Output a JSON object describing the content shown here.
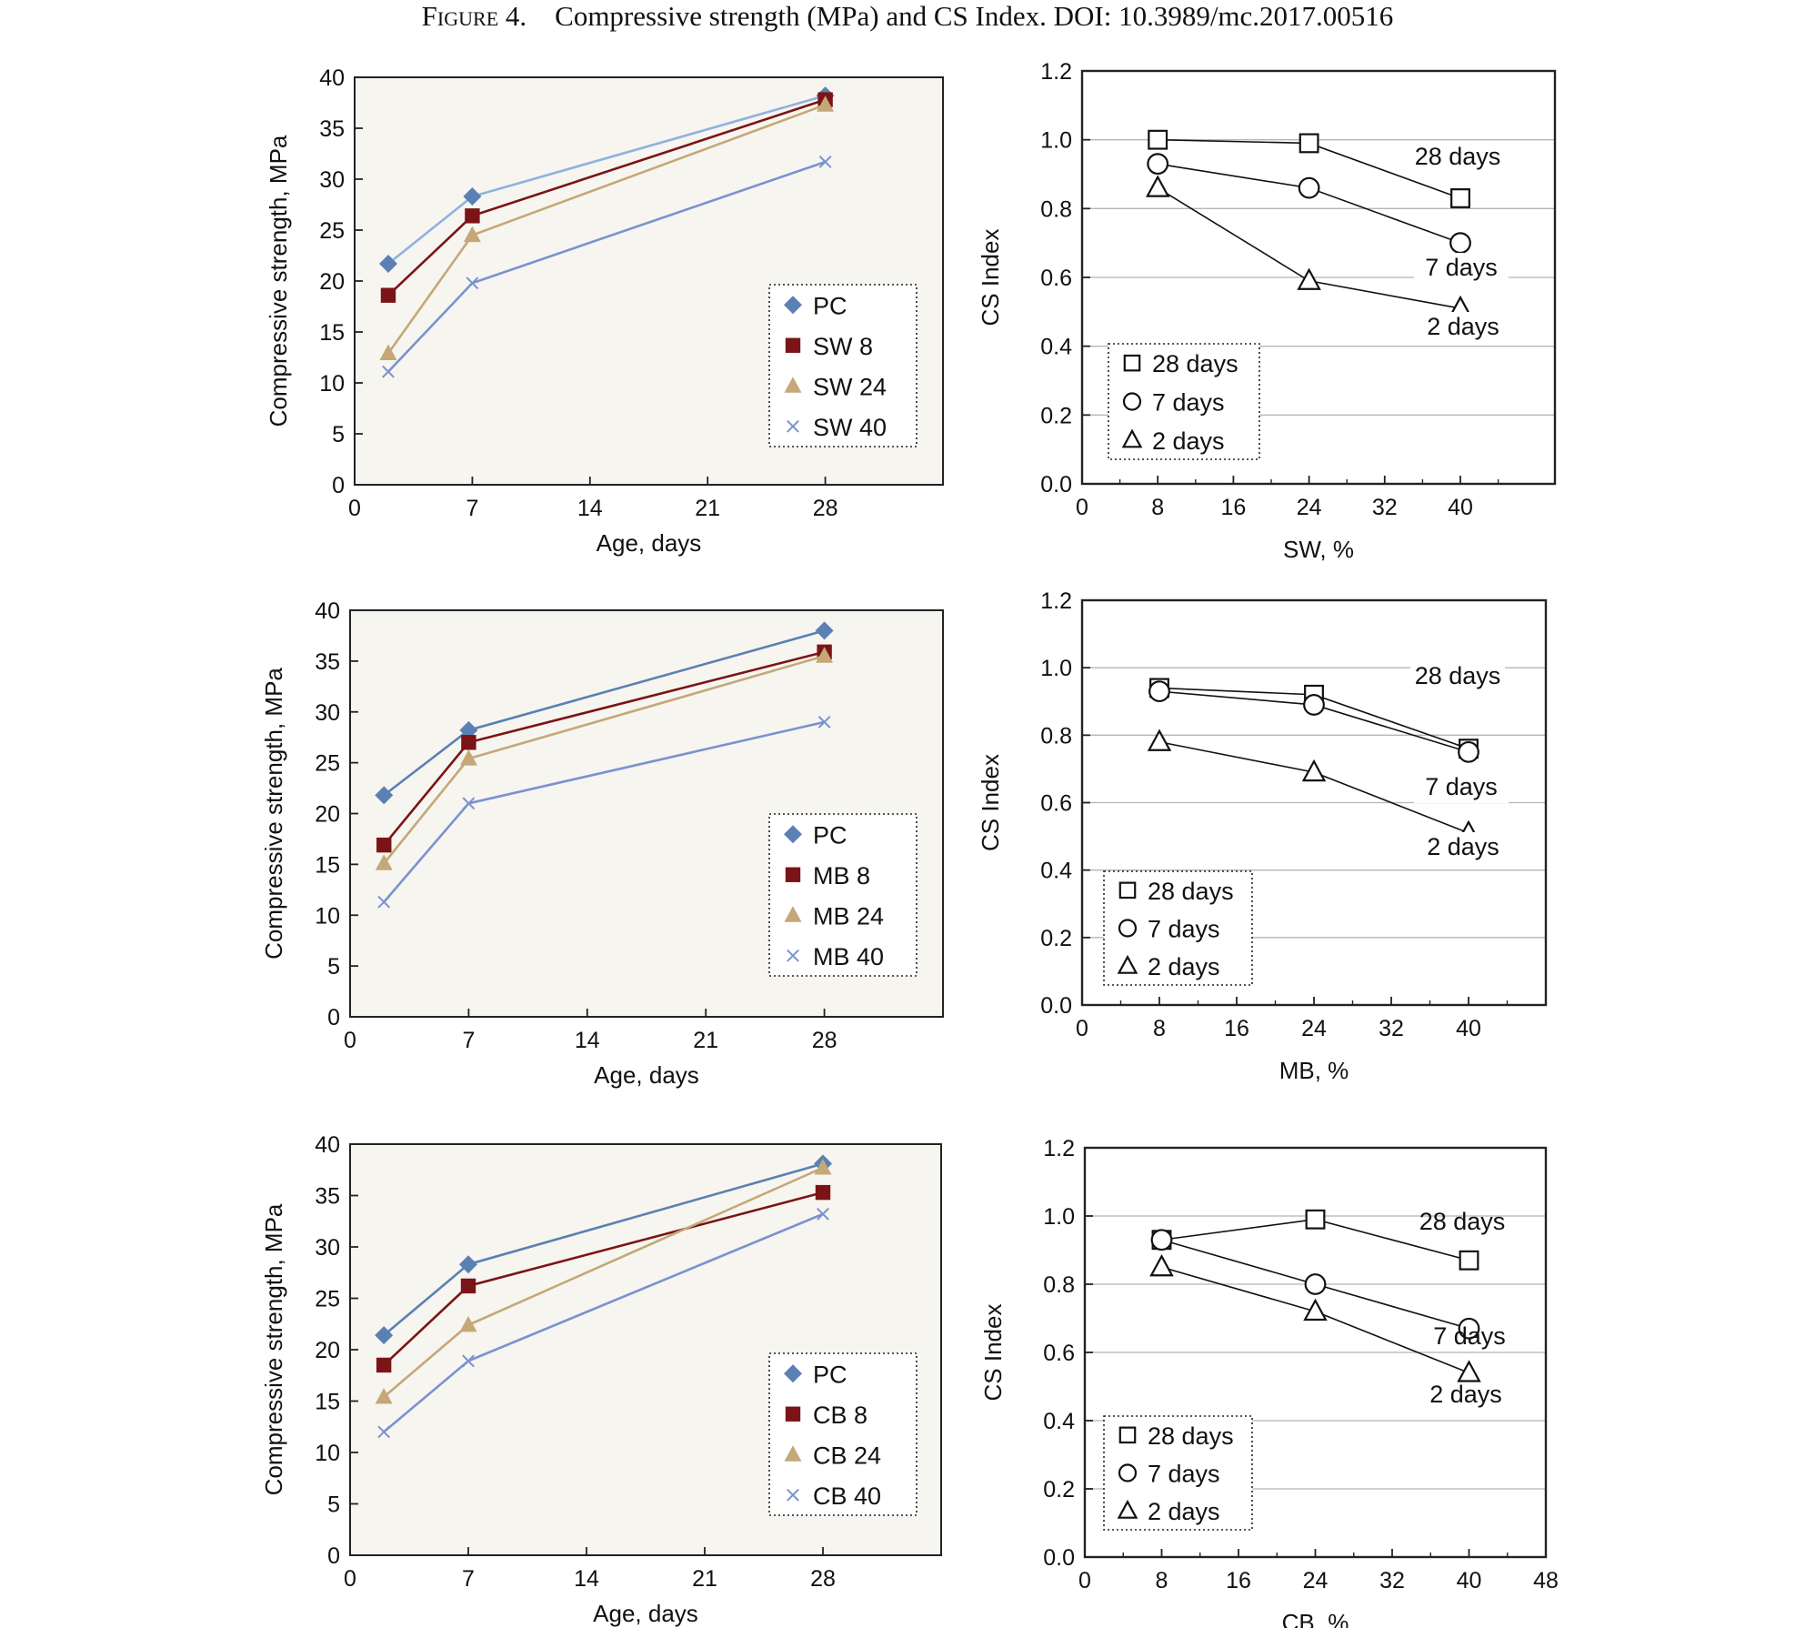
{
  "caption": {
    "label": "Figure 4.",
    "text": "Compressive strength (MPa) and CS Index. DOI: 10.3989/mc.2017.00516"
  },
  "colors": {
    "pc": "#5b80b4",
    "series_8": "#7b1416",
    "series_24": "#c4a877",
    "series_40": "#7a92cf",
    "pc_line_top": "#8fb2de",
    "plot_bg": "#f7f5f0",
    "grid": "#b5b5b5"
  },
  "chart_data": [
    {
      "type": "line",
      "panel": "strength-sw",
      "xlabel": "Age, days",
      "ylabel": "Compressive strength, MPa",
      "xlim": [
        0,
        35
      ],
      "ylim": [
        0,
        40
      ],
      "xticks": [
        0,
        7,
        14,
        21,
        28
      ],
      "yticks": [
        0,
        5,
        10,
        15,
        20,
        25,
        30,
        35,
        40
      ],
      "legend_placement": "center-right",
      "series": [
        {
          "name": "PC",
          "marker": "diamond",
          "x": [
            2,
            7,
            28
          ],
          "values": [
            21.7,
            28.3,
            38.2
          ]
        },
        {
          "name": "SW 8",
          "marker": "square",
          "x": [
            2,
            7,
            28
          ],
          "values": [
            18.6,
            26.4,
            37.8
          ]
        },
        {
          "name": "SW 24",
          "marker": "triangle",
          "x": [
            2,
            7,
            28
          ],
          "values": [
            12.9,
            24.5,
            37.3
          ]
        },
        {
          "name": "SW 40",
          "marker": "x",
          "x": [
            2,
            7,
            28
          ],
          "values": [
            11.1,
            19.8,
            31.7
          ]
        }
      ]
    },
    {
      "type": "line",
      "panel": "csindex-sw",
      "xlabel": "SW, %",
      "ylabel": "CS Index",
      "xlim": [
        0,
        50
      ],
      "ylim": [
        0,
        1.2
      ],
      "xticks": [
        0,
        8,
        16,
        24,
        32,
        40
      ],
      "yticks": [
        0.0,
        0.2,
        0.4,
        0.6,
        0.8,
        1.0,
        1.2
      ],
      "legend_placement": "bottom-left",
      "series": [
        {
          "name": "28 days",
          "marker": "square",
          "x": [
            8,
            24,
            40
          ],
          "values": [
            1.0,
            0.99,
            0.83
          ]
        },
        {
          "name": "7 days",
          "marker": "circle",
          "x": [
            8,
            24,
            40
          ],
          "values": [
            0.93,
            0.86,
            0.7
          ]
        },
        {
          "name": "2 days",
          "marker": "triangle",
          "x": [
            8,
            24,
            40
          ],
          "values": [
            0.86,
            0.59,
            0.51
          ]
        }
      ],
      "annotations": [
        "28 days",
        "7 days",
        "2 days"
      ]
    },
    {
      "type": "line",
      "panel": "strength-mb",
      "xlabel": "Age, days",
      "ylabel": "Compressive strength, MPa",
      "xlim": [
        0,
        35
      ],
      "ylim": [
        0,
        40
      ],
      "xticks": [
        0,
        7,
        14,
        21,
        28
      ],
      "yticks": [
        0,
        5,
        10,
        15,
        20,
        25,
        30,
        35,
        40
      ],
      "legend_placement": "center-right",
      "series": [
        {
          "name": "PC",
          "marker": "diamond",
          "x": [
            2,
            7,
            28
          ],
          "values": [
            21.8,
            28.2,
            38.0
          ]
        },
        {
          "name": "MB 8",
          "marker": "square",
          "x": [
            2,
            7,
            28
          ],
          "values": [
            16.9,
            27.0,
            35.9
          ]
        },
        {
          "name": "MB 24",
          "marker": "triangle",
          "x": [
            2,
            7,
            28
          ],
          "values": [
            15.1,
            25.4,
            35.5
          ]
        },
        {
          "name": "MB 40",
          "marker": "x",
          "x": [
            2,
            7,
            28
          ],
          "values": [
            11.3,
            21.0,
            29.0
          ]
        }
      ]
    },
    {
      "type": "line",
      "panel": "csindex-mb",
      "xlabel": "MB, %",
      "ylabel": "CS Index",
      "xlim": [
        0,
        48
      ],
      "ylim": [
        0,
        1.2
      ],
      "xticks": [
        0,
        8,
        16,
        24,
        32,
        40
      ],
      "yticks": [
        0.0,
        0.2,
        0.4,
        0.6,
        0.8,
        1.0,
        1.2
      ],
      "legend_placement": "bottom-left",
      "series": [
        {
          "name": "28 days",
          "marker": "square",
          "x": [
            8,
            24,
            40
          ],
          "values": [
            0.94,
            0.92,
            0.76
          ]
        },
        {
          "name": "7 days",
          "marker": "circle",
          "x": [
            8,
            24,
            40
          ],
          "values": [
            0.93,
            0.89,
            0.75
          ]
        },
        {
          "name": "2 days",
          "marker": "triangle",
          "x": [
            8,
            24,
            40
          ],
          "values": [
            0.78,
            0.69,
            0.51
          ]
        }
      ],
      "annotations": [
        "28 days",
        "7 days",
        "2 days"
      ]
    },
    {
      "type": "line",
      "panel": "strength-cb",
      "xlabel": "Age, days",
      "ylabel": "Compressive strength, MPa",
      "xlim": [
        0,
        35
      ],
      "ylim": [
        0,
        40
      ],
      "xticks": [
        0,
        7,
        14,
        21,
        28
      ],
      "yticks": [
        0,
        5,
        10,
        15,
        20,
        25,
        30,
        35,
        40
      ],
      "legend_placement": "center-right",
      "series": [
        {
          "name": "PC",
          "marker": "diamond",
          "x": [
            2,
            7,
            28
          ],
          "values": [
            21.4,
            28.3,
            38.1
          ]
        },
        {
          "name": "CB 8",
          "marker": "square",
          "x": [
            2,
            7,
            28
          ],
          "values": [
            18.5,
            26.2,
            35.3
          ]
        },
        {
          "name": "CB 24",
          "marker": "triangle",
          "x": [
            2,
            7,
            28
          ],
          "values": [
            15.4,
            22.4,
            37.7
          ]
        },
        {
          "name": "CB 40",
          "marker": "x",
          "x": [
            2,
            7,
            28
          ],
          "values": [
            12.0,
            18.9,
            33.2
          ]
        }
      ]
    },
    {
      "type": "line",
      "panel": "csindex-cb",
      "xlabel": "CB, %",
      "ylabel": "CS Index",
      "xlim": [
        0,
        48
      ],
      "ylim": [
        0,
        1.2
      ],
      "xticks": [
        0,
        8,
        16,
        24,
        32,
        40,
        48
      ],
      "yticks": [
        0.0,
        0.2,
        0.4,
        0.6,
        0.8,
        1.0,
        1.2
      ],
      "legend_placement": "bottom-left",
      "series": [
        {
          "name": "28 days",
          "marker": "square",
          "x": [
            8,
            24,
            40
          ],
          "values": [
            0.93,
            0.99,
            0.87
          ]
        },
        {
          "name": "7 days",
          "marker": "circle",
          "x": [
            8,
            24,
            40
          ],
          "values": [
            0.93,
            0.8,
            0.67
          ]
        },
        {
          "name": "2 days",
          "marker": "triangle",
          "x": [
            8,
            24,
            40
          ],
          "values": [
            0.85,
            0.72,
            0.54
          ]
        }
      ],
      "annotations": [
        "28 days",
        "7 days",
        "2 days"
      ]
    }
  ]
}
